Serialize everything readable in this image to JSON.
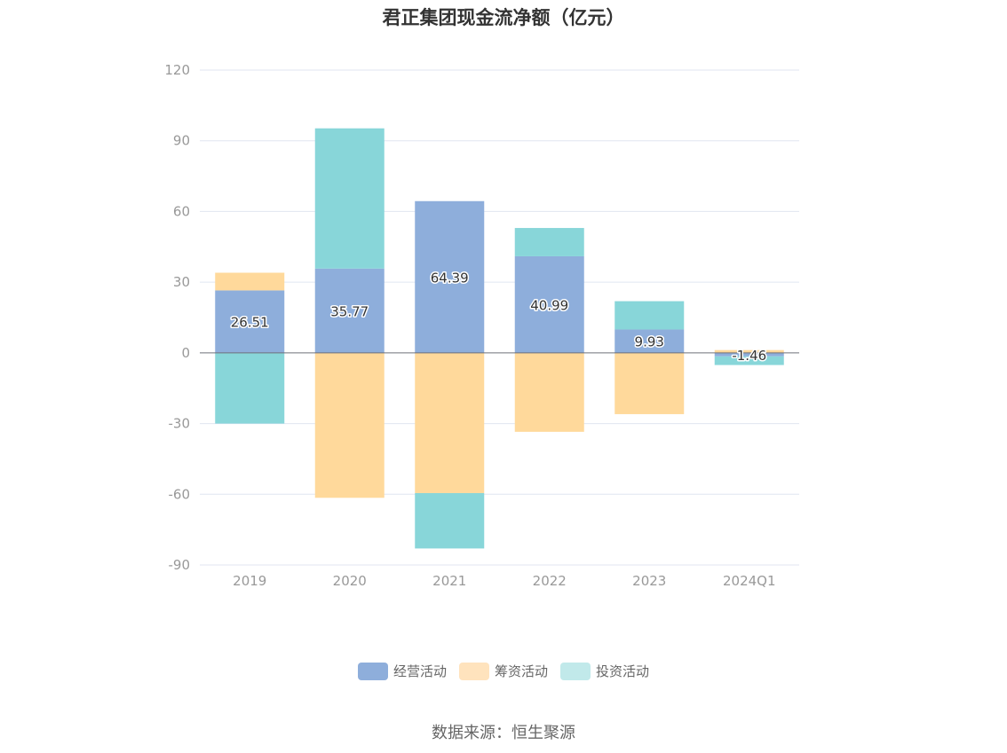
{
  "chart_data": {
    "type": "bar",
    "stacked": true,
    "title": "君正集团现金流净额（亿元）",
    "categories": [
      "2019",
      "2020",
      "2021",
      "2022",
      "2023",
      "2024Q1"
    ],
    "series": [
      {
        "name": "经营活动",
        "color": "#8eaedb",
        "values": [
          26.51,
          35.77,
          64.39,
          40.99,
          9.93,
          -1.46
        ]
      },
      {
        "name": "筹资活动",
        "color": "#ffd99b",
        "values": [
          7.5,
          -61.5,
          -59.5,
          -33.5,
          -26.0,
          1.2
        ]
      },
      {
        "name": "投资活动",
        "color": "#88d6d9",
        "values": [
          -30.0,
          59.5,
          -23.5,
          12.0,
          12.0,
          -3.7
        ]
      }
    ],
    "data_labels": [
      "26.51",
      "35.77",
      "64.39",
      "40.99",
      "9.93",
      "-1.46"
    ],
    "ylim": [
      -90,
      120
    ],
    "yticks": [
      "120",
      "90",
      "60",
      "30",
      "0",
      "-30",
      "-60",
      "-90"
    ],
    "ytick_values": [
      120,
      90,
      60,
      30,
      0,
      -30,
      -60,
      -90
    ],
    "grid": true,
    "legend_position": "bottom",
    "legend_swatch_colors": [
      "#8eaedb",
      "#ffe3bd",
      "#c1e9ea"
    ],
    "source": "数据来源：恒生聚源"
  }
}
